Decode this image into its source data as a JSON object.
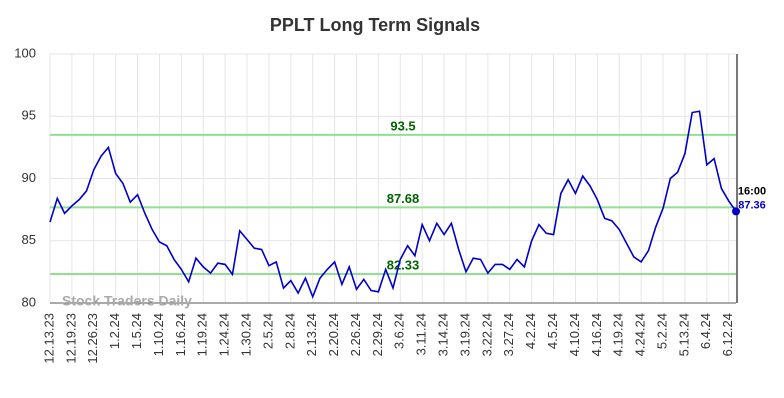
{
  "chart_data": {
    "type": "line",
    "title": "PPLT Long Term Signals",
    "categories": [
      "12.13.23",
      null,
      null,
      "12.19.23",
      null,
      null,
      "12.26.23",
      null,
      null,
      "1.2.24",
      null,
      null,
      "1.5.24",
      null,
      null,
      "1.10.24",
      null,
      null,
      "1.16.24",
      null,
      null,
      "1.19.24",
      null,
      null,
      "1.24.24",
      null,
      null,
      "1.30.24",
      null,
      null,
      "2.5.24",
      null,
      null,
      "2.8.24",
      null,
      null,
      "2.13.24",
      null,
      null,
      "2.20.24",
      null,
      null,
      "2.26.24",
      null,
      null,
      "2.29.24",
      null,
      null,
      "3.6.24",
      null,
      null,
      "3.11.24",
      null,
      null,
      "3.14.24",
      null,
      null,
      "3.19.24",
      null,
      null,
      "3.22.24",
      null,
      null,
      "3.27.24",
      null,
      null,
      "4.2.24",
      null,
      null,
      "4.5.24",
      null,
      null,
      "4.10.24",
      null,
      null,
      "4.16.24",
      null,
      null,
      "4.19.24",
      null,
      null,
      "4.24.24",
      null,
      null,
      "5.2.24",
      null,
      null,
      "5.13.24",
      null,
      null,
      "6.4.24",
      null,
      null,
      "6.12.24",
      null
    ],
    "series": [
      {
        "name": "PPLT",
        "color": "#0000cc",
        "values": [
          86.5,
          88.4,
          87.2,
          87.8,
          88.3,
          89.0,
          90.7,
          91.8,
          92.5,
          90.4,
          89.6,
          88.1,
          88.7,
          87.2,
          85.9,
          84.9,
          84.6,
          83.5,
          82.7,
          81.7,
          83.6,
          82.9,
          82.4,
          83.2,
          83.1,
          82.3,
          85.8,
          85.1,
          84.4,
          84.3,
          83.0,
          83.3,
          81.2,
          81.8,
          80.8,
          82.0,
          80.5,
          82.0,
          82.7,
          83.3,
          81.5,
          82.9,
          81.1,
          81.9,
          81.0,
          80.9,
          82.7,
          81.2,
          83.5,
          84.6,
          83.8,
          86.3,
          85.0,
          86.4,
          85.5,
          86.4,
          84.3,
          82.5,
          83.6,
          83.5,
          82.4,
          83.1,
          83.1,
          82.7,
          83.5,
          82.9,
          85.0,
          86.3,
          85.6,
          85.5,
          88.8,
          89.9,
          88.8,
          90.2,
          89.4,
          88.3,
          86.8,
          86.6,
          85.9,
          84.8,
          83.7,
          83.3,
          84.2,
          86.1,
          87.6,
          90.0,
          90.5,
          92.0,
          95.3,
          95.4,
          91.1,
          91.6,
          89.2,
          88.2,
          87.36
        ]
      }
    ],
    "hlines": [
      {
        "value": 93.5,
        "color": "#90e090"
      },
      {
        "value": 87.68,
        "color": "#90e090"
      },
      {
        "value": 82.33,
        "color": "#90e090"
      }
    ],
    "last_time": "16:00",
    "watermark": "Stock Traders Daily",
    "ylim": [
      80,
      100
    ],
    "yticks": [
      80,
      85,
      90,
      95,
      100
    ],
    "grid": true
  }
}
